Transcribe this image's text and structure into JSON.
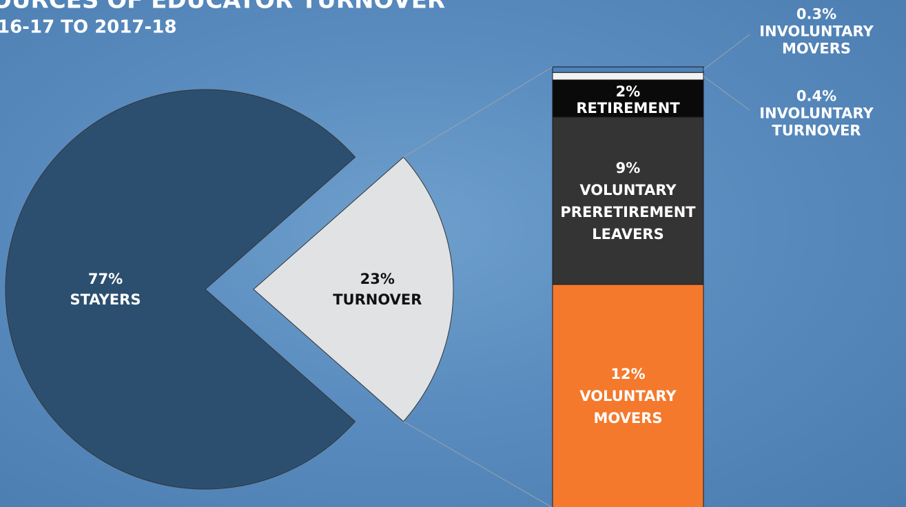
{
  "chart_data": [
    {
      "type": "pie",
      "title": "OURCES OF EDUCATOR TURNOVER",
      "subtitle": "16-17 TO 2017-18",
      "categories": [
        "STAYERS",
        "TURNOVER"
      ],
      "values": [
        77,
        23
      ],
      "value_labels": [
        "77%",
        "23%"
      ],
      "colors": [
        "#2d4f6f",
        "#e1e2e4"
      ],
      "exploded": [
        false,
        true
      ]
    },
    {
      "type": "bar",
      "stacked": true,
      "categories": [
        "VOLUNTARY MOVERS",
        "VOLUNTARY PRERETIREMENT LEAVERS",
        "RETIREMENT",
        "INVOLUNTARY TURNOVER",
        "INVOLUNTARY MOVERS"
      ],
      "values": [
        12,
        9,
        2,
        0.4,
        0.3
      ],
      "value_labels": [
        "12%",
        "9%",
        "2%",
        "0.4%",
        "0.3%"
      ],
      "colors": [
        "#f4792c",
        "#343434",
        "#0a0a0a",
        "#f2f2f2",
        "#4f82b8"
      ]
    }
  ]
}
